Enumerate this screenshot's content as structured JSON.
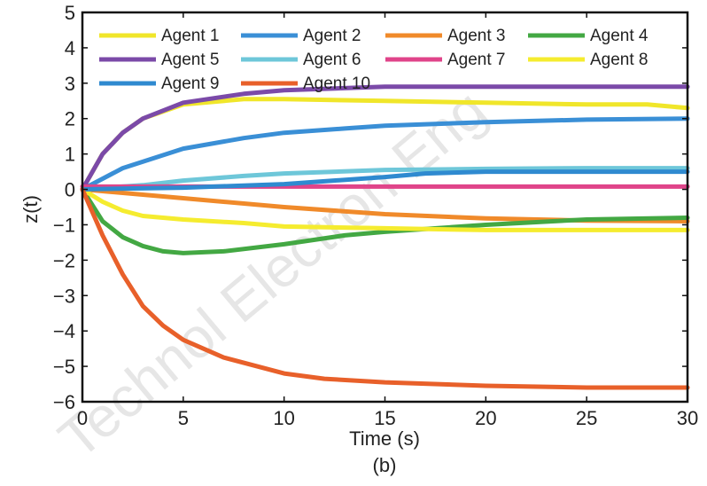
{
  "chart_data": {
    "type": "line",
    "title": "",
    "xlabel": "Time (s)",
    "ylabel": "z(t)",
    "caption": "(b)",
    "xlim": [
      0,
      30
    ],
    "ylim": [
      -6,
      5
    ],
    "xticks": [
      0,
      5,
      10,
      15,
      20,
      25,
      30
    ],
    "yticks": [
      5,
      4,
      3,
      2,
      1,
      0,
      -1,
      -2,
      -3,
      -4,
      -5,
      -6
    ],
    "grid": false,
    "legend_position": "top",
    "series": [
      {
        "name": "Agent 1",
        "color": "#f0e62a",
        "x": [
          0,
          1,
          2,
          3,
          5,
          8,
          10,
          15,
          20,
          25,
          28,
          30
        ],
        "y": [
          0,
          1.0,
          1.6,
          2.0,
          2.4,
          2.55,
          2.55,
          2.5,
          2.45,
          2.4,
          2.4,
          2.3
        ]
      },
      {
        "name": "Agent 2",
        "color": "#3a8fd6",
        "x": [
          0,
          2,
          5,
          8,
          10,
          13,
          15,
          20,
          25,
          30
        ],
        "y": [
          0,
          0.6,
          1.15,
          1.45,
          1.6,
          1.72,
          1.8,
          1.9,
          1.97,
          2.0
        ]
      },
      {
        "name": "Agent 3",
        "color": "#f08a2a",
        "x": [
          0,
          2,
          5,
          10,
          15,
          20,
          25,
          30
        ],
        "y": [
          0,
          -0.1,
          -0.25,
          -0.5,
          -0.7,
          -0.82,
          -0.88,
          -0.9
        ]
      },
      {
        "name": "Agent 4",
        "color": "#43a843",
        "x": [
          0,
          1,
          2,
          3,
          4,
          5,
          7,
          10,
          13,
          15,
          20,
          25,
          30
        ],
        "y": [
          0,
          -0.9,
          -1.35,
          -1.6,
          -1.75,
          -1.8,
          -1.75,
          -1.55,
          -1.3,
          -1.2,
          -1.0,
          -0.85,
          -0.8
        ]
      },
      {
        "name": "Agent 5",
        "color": "#7b4aa8",
        "x": [
          0,
          1,
          2,
          3,
          5,
          8,
          10,
          15,
          20,
          25,
          30
        ],
        "y": [
          0,
          1.0,
          1.6,
          2.0,
          2.45,
          2.7,
          2.8,
          2.9,
          2.9,
          2.9,
          2.9
        ]
      },
      {
        "name": "Agent 6",
        "color": "#6ec7d9",
        "x": [
          0,
          3,
          5,
          8,
          10,
          15,
          20,
          25,
          30
        ],
        "y": [
          0,
          0.12,
          0.25,
          0.38,
          0.45,
          0.55,
          0.58,
          0.6,
          0.6
        ]
      },
      {
        "name": "Agent 7",
        "color": "#e0448a",
        "x": [
          0,
          30
        ],
        "y": [
          0.08,
          0.08
        ]
      },
      {
        "name": "Agent 8",
        "color": "#f5ec2f",
        "x": [
          0,
          1,
          2,
          3,
          5,
          8,
          10,
          15,
          20,
          25,
          30
        ],
        "y": [
          0,
          -0.35,
          -0.6,
          -0.75,
          -0.85,
          -0.95,
          -1.05,
          -1.1,
          -1.15,
          -1.15,
          -1.15
        ]
      },
      {
        "name": "Agent 9",
        "color": "#2f8ad0",
        "x": [
          0,
          5,
          10,
          15,
          17,
          20,
          25,
          30
        ],
        "y": [
          0,
          0.05,
          0.15,
          0.35,
          0.45,
          0.5,
          0.5,
          0.5
        ]
      },
      {
        "name": "Agent 10",
        "color": "#e8602a",
        "x": [
          0,
          1,
          2,
          3,
          4,
          5,
          7,
          10,
          12,
          15,
          20,
          25,
          30
        ],
        "y": [
          0,
          -1.3,
          -2.4,
          -3.3,
          -3.85,
          -4.25,
          -4.75,
          -5.2,
          -5.35,
          -5.45,
          -5.55,
          -5.6,
          -5.6
        ]
      }
    ]
  },
  "watermark": "Technol Electron Eng"
}
